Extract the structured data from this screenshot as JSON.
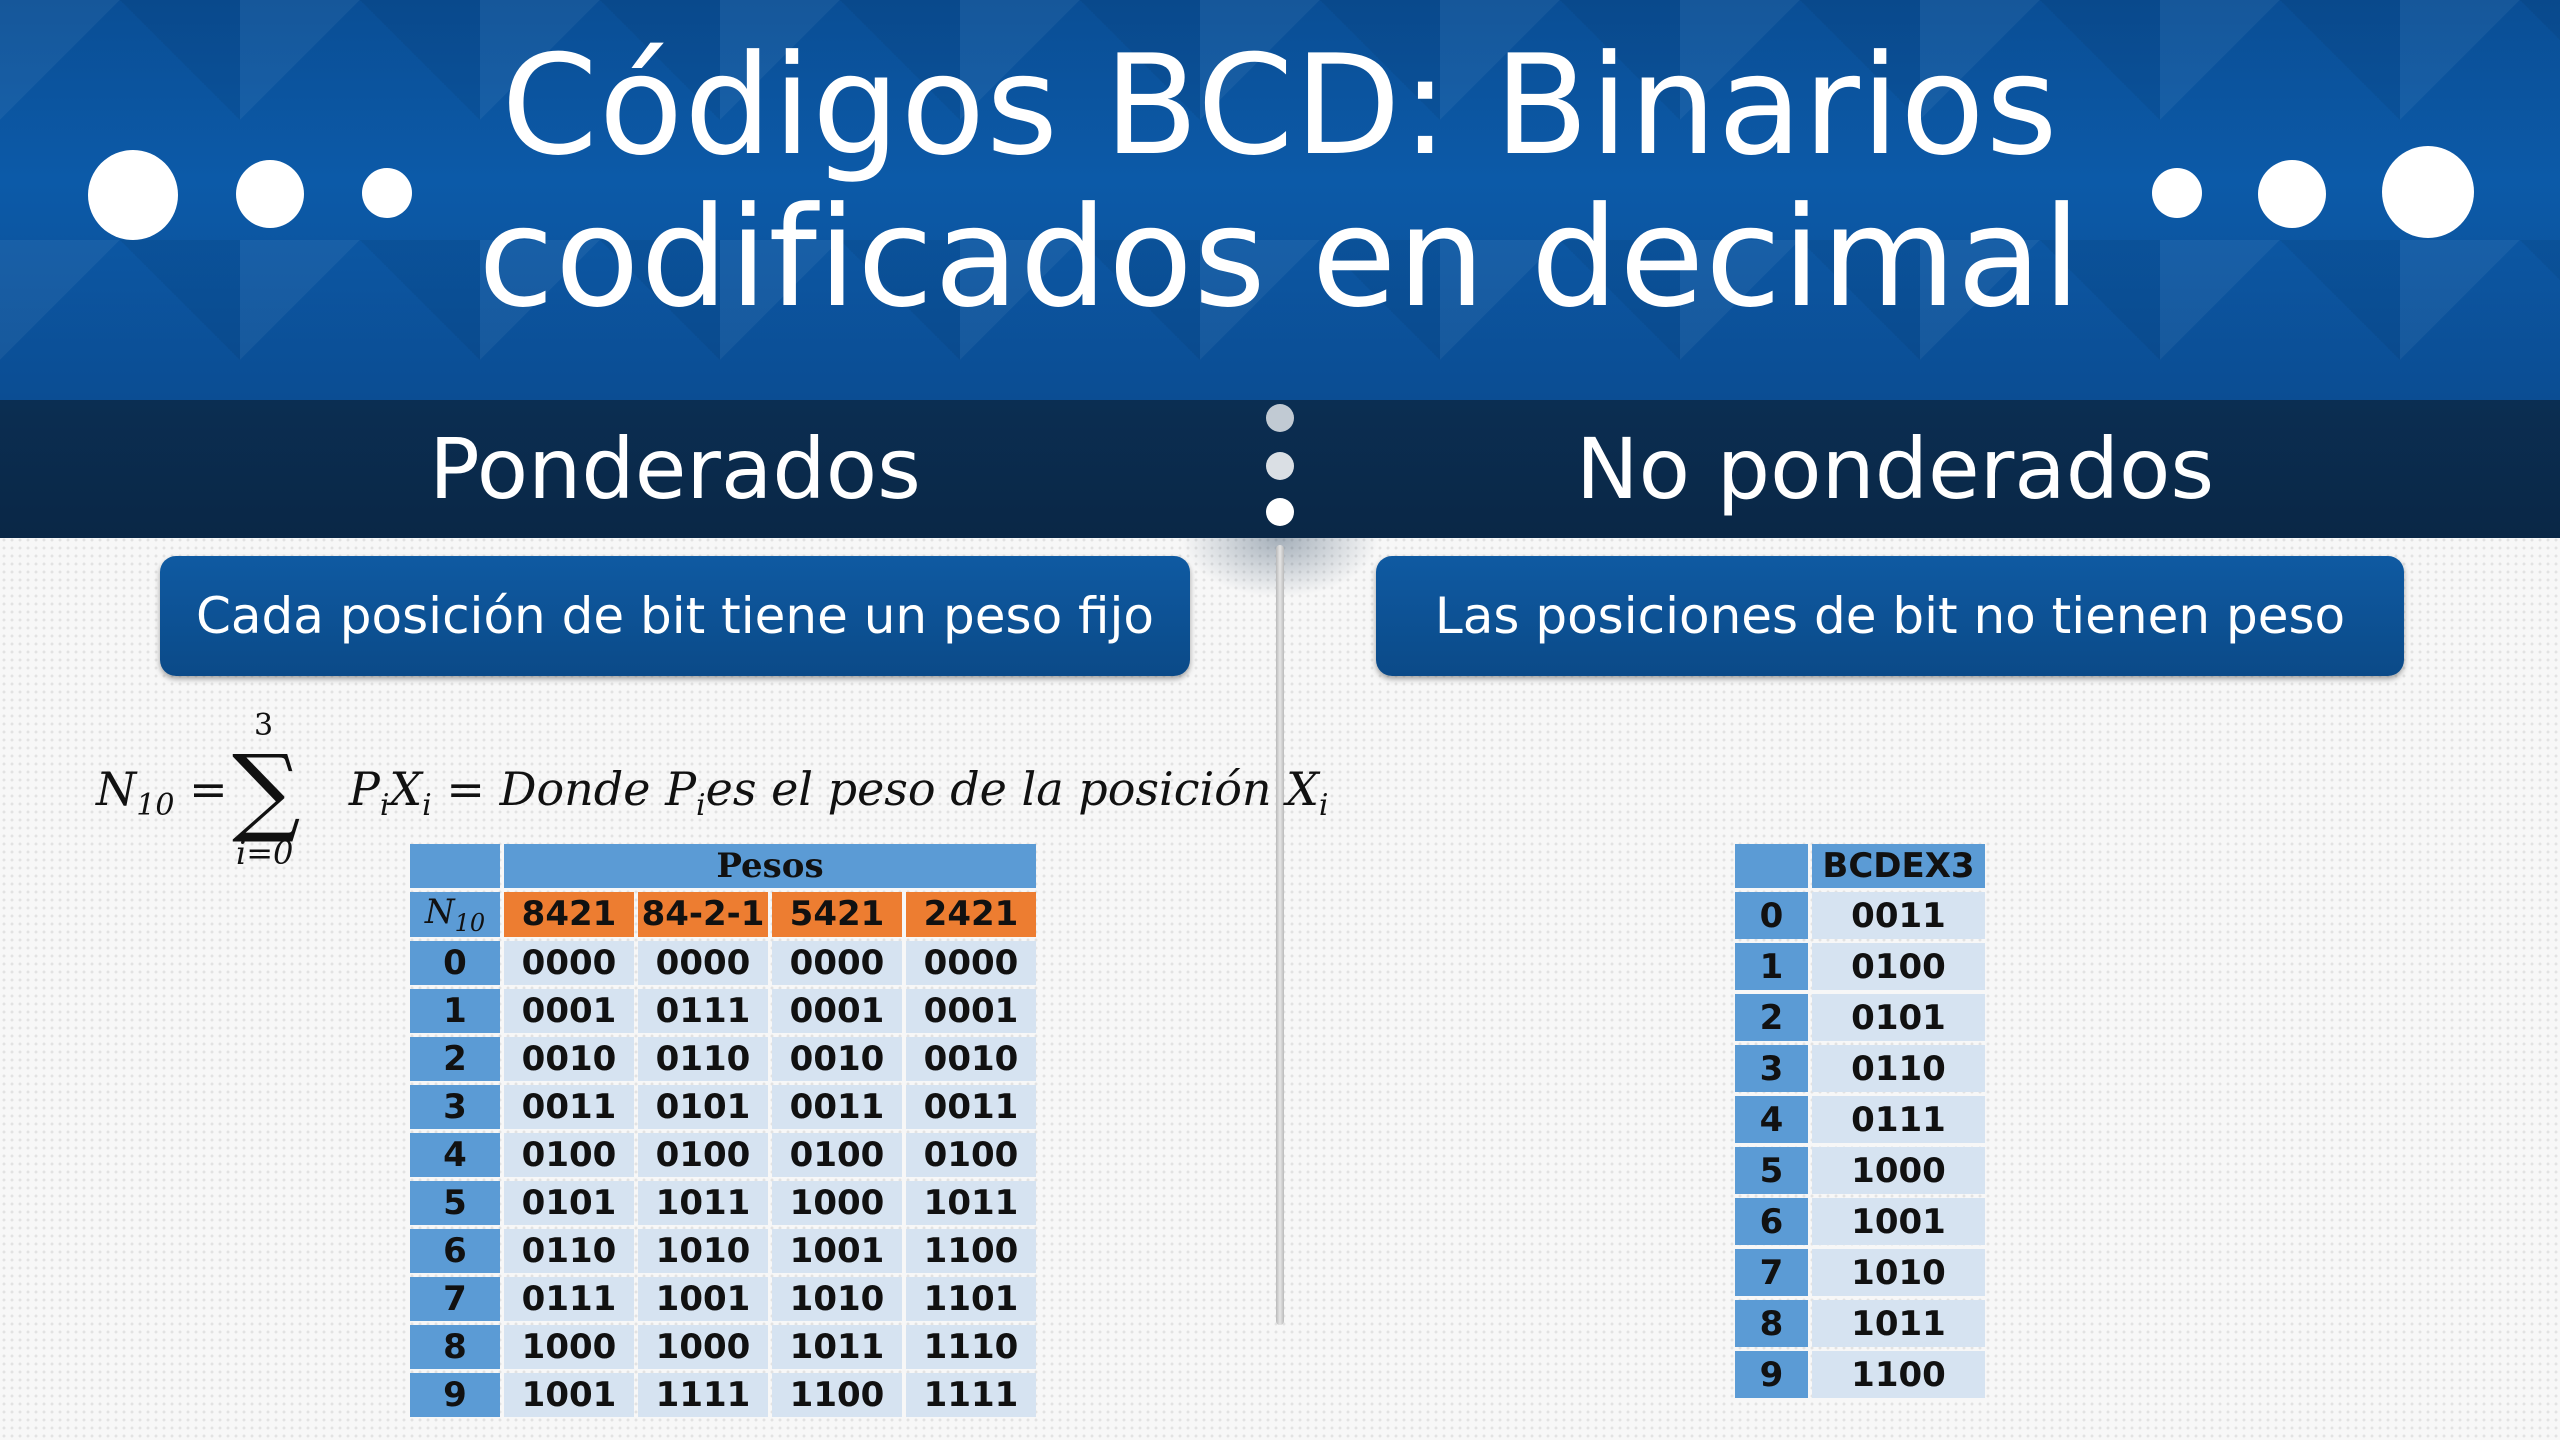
{
  "title_line1": "Códigos BCD: Binarios",
  "title_line2": "codificados en decimal",
  "left_heading": "Ponderados",
  "right_heading": "No ponderados",
  "left_pill": "Cada posición de bit tiene un peso fijo",
  "right_pill": "Las posiciones de bit no tienen peso",
  "formula": {
    "lhs": "N",
    "lhs_sub": "10",
    "eq": "=",
    "sum_top": "3",
    "sum_bottom": "i=0",
    "term_p": "P",
    "term_x": "X",
    "idx": "i",
    "text1": "= Donde P",
    "text2": "es el peso de la posición X"
  },
  "weighted_table": {
    "group_header": "Pesos",
    "row_header_base": "N",
    "row_header_sub": "10",
    "columns": [
      "8421",
      "84-2-1",
      "5421",
      "2421"
    ],
    "rows": [
      {
        "n": "0",
        "v": [
          "0000",
          "0000",
          "0000",
          "0000"
        ]
      },
      {
        "n": "1",
        "v": [
          "0001",
          "0111",
          "0001",
          "0001"
        ]
      },
      {
        "n": "2",
        "v": [
          "0010",
          "0110",
          "0010",
          "0010"
        ]
      },
      {
        "n": "3",
        "v": [
          "0011",
          "0101",
          "0011",
          "0011"
        ]
      },
      {
        "n": "4",
        "v": [
          "0100",
          "0100",
          "0100",
          "0100"
        ]
      },
      {
        "n": "5",
        "v": [
          "0101",
          "1011",
          "1000",
          "1011"
        ]
      },
      {
        "n": "6",
        "v": [
          "0110",
          "1010",
          "1001",
          "1100"
        ]
      },
      {
        "n": "7",
        "v": [
          "0111",
          "1001",
          "1010",
          "1101"
        ]
      },
      {
        "n": "8",
        "v": [
          "1000",
          "1000",
          "1011",
          "1110"
        ]
      },
      {
        "n": "9",
        "v": [
          "1001",
          "1111",
          "1100",
          "1111"
        ]
      }
    ]
  },
  "unweighted_table": {
    "header": "BCDEX3",
    "rows": [
      {
        "n": "0",
        "v": "0011"
      },
      {
        "n": "1",
        "v": "0100"
      },
      {
        "n": "2",
        "v": "0101"
      },
      {
        "n": "3",
        "v": "0110"
      },
      {
        "n": "4",
        "v": "0111"
      },
      {
        "n": "5",
        "v": "1000"
      },
      {
        "n": "6",
        "v": "1001"
      },
      {
        "n": "7",
        "v": "1010"
      },
      {
        "n": "8",
        "v": "1011"
      },
      {
        "n": "9",
        "v": "1100"
      }
    ]
  },
  "colors": {
    "header_blue": "#0c5aa8",
    "dark_bar": "#0a2746",
    "table_blue": "#5b9bd5",
    "table_cell": "#d6e3f1",
    "table_orange": "#ed7d31"
  }
}
